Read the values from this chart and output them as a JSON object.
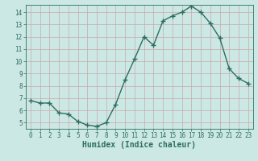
{
  "x": [
    0,
    1,
    2,
    3,
    4,
    5,
    6,
    7,
    8,
    9,
    10,
    11,
    12,
    13,
    14,
    15,
    16,
    17,
    18,
    19,
    20,
    21,
    22,
    23
  ],
  "y": [
    6.8,
    6.6,
    6.6,
    5.8,
    5.7,
    5.1,
    4.8,
    4.7,
    5.0,
    6.5,
    8.5,
    10.2,
    12.0,
    11.3,
    13.3,
    13.7,
    14.0,
    14.5,
    14.0,
    13.1,
    11.9,
    9.4,
    8.6,
    8.2
  ],
  "line_color": "#2d6e62",
  "marker": "+",
  "marker_size": 4,
  "bg_color": "#cce8e4",
  "grid_color": "#c8aaaa",
  "xlabel": "Humidex (Indice chaleur)",
  "ylim": [
    4.5,
    14.6
  ],
  "xlim": [
    -0.5,
    23.5
  ],
  "yticks": [
    5,
    6,
    7,
    8,
    9,
    10,
    11,
    12,
    13,
    14
  ],
  "xticks": [
    0,
    1,
    2,
    3,
    4,
    5,
    6,
    7,
    8,
    9,
    10,
    11,
    12,
    13,
    14,
    15,
    16,
    17,
    18,
    19,
    20,
    21,
    22,
    23
  ],
  "tick_fontsize": 5.5,
  "xlabel_fontsize": 7.0,
  "linewidth": 1.0,
  "marker_linewidth": 1.0
}
